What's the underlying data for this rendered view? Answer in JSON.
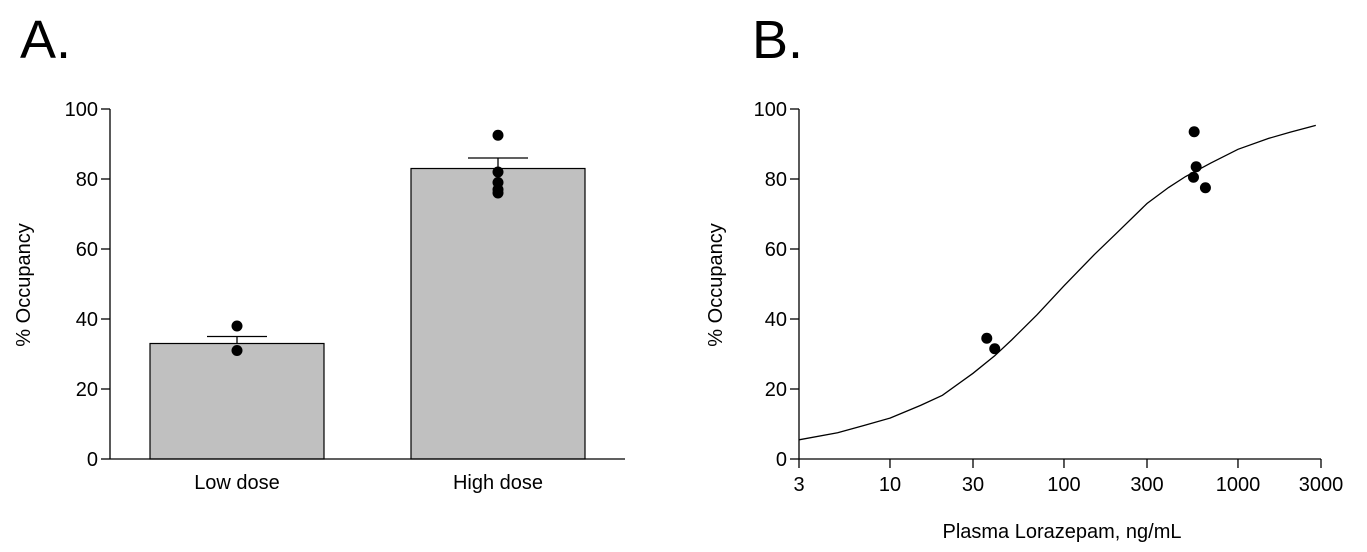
{
  "chart_data": [
    {
      "type": "bar",
      "panel_label": "A.",
      "title": "",
      "xlabel": "",
      "ylabel": "% Occupancy",
      "categories": [
        "Low dose",
        "High dose"
      ],
      "values": [
        33,
        83
      ],
      "error_upper": [
        35,
        86
      ],
      "points": [
        [
          38,
          31
        ],
        [
          92.5,
          82,
          79,
          77,
          76
        ]
      ],
      "ylim": [
        0,
        100
      ],
      "yticks": [
        0,
        20,
        40,
        60,
        80,
        100
      ],
      "bar_color": "#c0c0c0",
      "grid": false,
      "legend": "none"
    },
    {
      "type": "scatter",
      "panel_label": "B.",
      "title": "",
      "xlabel": "Plasma Lorazepam, ng/mL",
      "ylabel": "% Occupancy",
      "x_scale": "log",
      "xlim": [
        3,
        3000
      ],
      "ylim": [
        0,
        100
      ],
      "xticks": [
        3,
        10,
        30,
        100,
        300,
        1000,
        3000
      ],
      "yticks": [
        0,
        20,
        40,
        60,
        80,
        100
      ],
      "points": [
        {
          "x": 36,
          "y": 34.5
        },
        {
          "x": 40,
          "y": 31.5
        },
        {
          "x": 560,
          "y": 93.5
        },
        {
          "x": 575,
          "y": 83.5
        },
        {
          "x": 555,
          "y": 80.5
        },
        {
          "x": 650,
          "y": 77.5
        }
      ],
      "fit_curve": {
        "x": [
          3,
          5,
          7,
          10,
          15,
          20,
          30,
          40,
          50,
          70,
          100,
          150,
          200,
          300,
          400,
          500,
          700,
          1000,
          1500,
          2000,
          2800
        ],
        "y": [
          5.5,
          7.5,
          9.5,
          11.7,
          15.3,
          18.2,
          24.5,
          29.5,
          34,
          41.2,
          49.5,
          58.5,
          64.5,
          73,
          77.6,
          80.7,
          84.6,
          88.5,
          91.6,
          93.4,
          95.3
        ]
      },
      "grid": false,
      "legend": "none"
    }
  ]
}
